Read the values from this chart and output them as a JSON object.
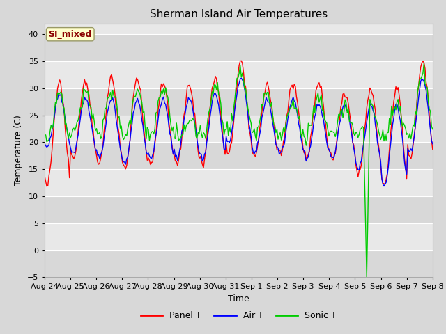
{
  "title": "Sherman Island Air Temperatures",
  "xlabel": "Time",
  "ylabel": "Temperature (C)",
  "ylim": [
    -5,
    42
  ],
  "yticks": [
    -5,
    0,
    5,
    10,
    15,
    20,
    25,
    30,
    35,
    40
  ],
  "fig_bg": "#d8d8d8",
  "plot_bg": "#d8d8d8",
  "legend_label": "SI_mixed",
  "legend_text_color": "#8b0000",
  "legend_bg": "#ffffcc",
  "series": {
    "Panel T": {
      "color": "#ff0000"
    },
    "Air T": {
      "color": "#0000ff"
    },
    "Sonic T": {
      "color": "#00cc00"
    }
  },
  "xtick_labels": [
    "Aug 24",
    "Aug 25",
    "Aug 26",
    "Aug 27",
    "Aug 28",
    "Aug 29",
    "Aug 30",
    "Aug 31",
    "Sep 1",
    "Sep 2",
    "Sep 3",
    "Sep 4",
    "Sep 5",
    "Sep 6",
    "Sep 7",
    "Sep 8"
  ]
}
